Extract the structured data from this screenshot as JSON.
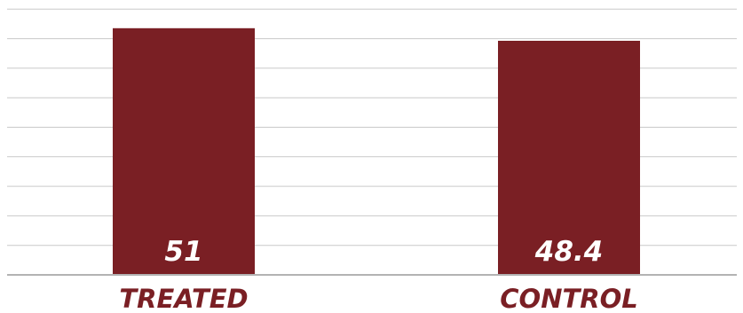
{
  "chart_data": {
    "type": "bar",
    "categories": [
      "TREATED",
      "CONTROL"
    ],
    "values": [
      51,
      48.4
    ],
    "value_labels": [
      "51",
      "48.4"
    ],
    "title": "",
    "xlabel": "",
    "ylabel": "",
    "ylim": [
      0,
      55
    ],
    "grid": true,
    "legend": "none",
    "bar_color": "#7a1f24",
    "label_color": "#7a1f24",
    "value_label_color": "#ffffff",
    "grid_color": "#c9c9c9"
  }
}
